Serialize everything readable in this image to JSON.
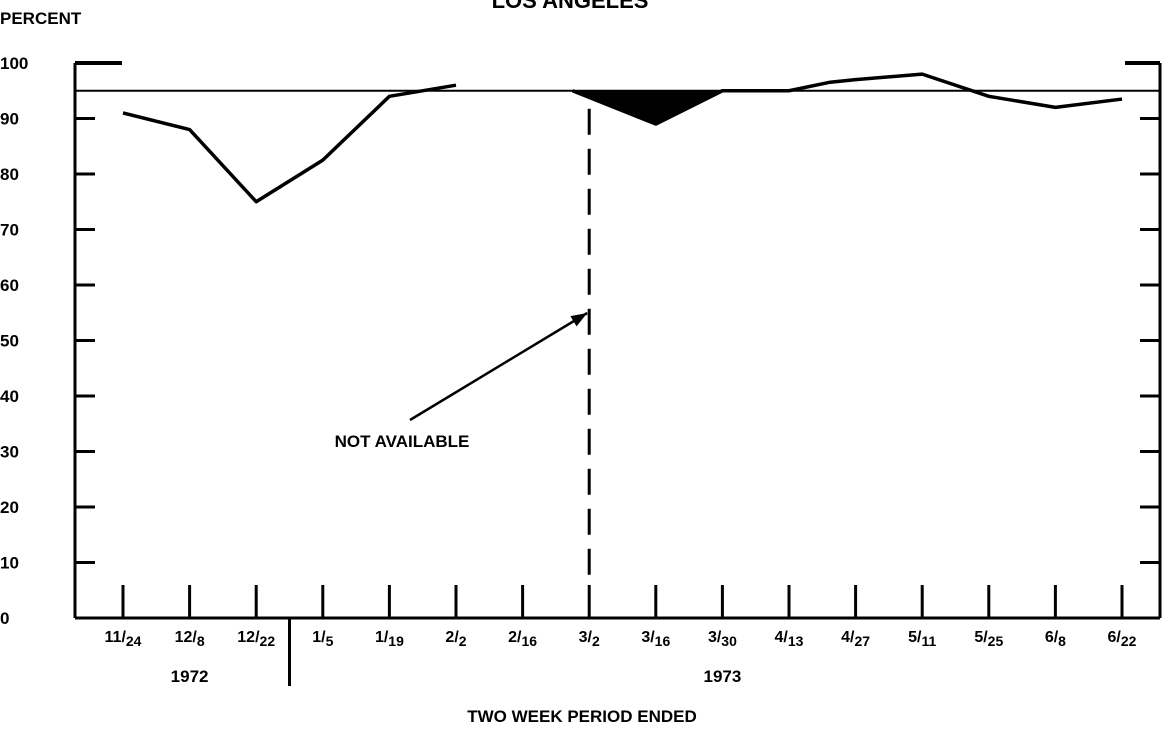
{
  "chart_data": {
    "type": "line",
    "title": "LOS ANGELES",
    "ylabel": "PERCENT",
    "xlabel": "TWO WEEK PERIOD ENDED",
    "ylim": [
      0,
      100
    ],
    "yticks": [
      "0",
      "10",
      "20",
      "30",
      "40",
      "50",
      "60",
      "70",
      "80",
      "90",
      "100"
    ],
    "categories": [
      {
        "label": "11/24",
        "main": "11/",
        "sub": "24"
      },
      {
        "label": "12/8",
        "main": "12/",
        "sub": "8"
      },
      {
        "label": "12/22",
        "main": "12/",
        "sub": "22"
      },
      {
        "label": "1/5",
        "main": "1/",
        "sub": "5"
      },
      {
        "label": "1/19",
        "main": "1/",
        "sub": "19"
      },
      {
        "label": "2/2",
        "main": "2/",
        "sub": "2"
      },
      {
        "label": "2/16",
        "main": "2/",
        "sub": "16"
      },
      {
        "label": "3/2",
        "main": "3/",
        "sub": "2"
      },
      {
        "label": "3/16",
        "main": "3/",
        "sub": "16"
      },
      {
        "label": "3/30",
        "main": "3/",
        "sub": "30"
      },
      {
        "label": "4/13",
        "main": "4/",
        "sub": "13"
      },
      {
        "label": "4/27",
        "main": "4/",
        "sub": "27"
      },
      {
        "label": "5/11",
        "main": "5/",
        "sub": "11"
      },
      {
        "label": "5/25",
        "main": "5/",
        "sub": "25"
      },
      {
        "label": "6/8",
        "main": "6/",
        "sub": "8"
      },
      {
        "label": "6/22",
        "main": "6/",
        "sub": "22"
      }
    ],
    "years": [
      {
        "label": "1972",
        "at": 1
      },
      {
        "label": "1973",
        "at": 9
      }
    ],
    "year_divider_at": 2.5,
    "reference_line": 95,
    "series": [
      {
        "points": [
          {
            "x": 0,
            "y": 91
          },
          {
            "x": 1,
            "y": 88
          },
          {
            "x": 2,
            "y": 75
          },
          {
            "x": 3,
            "y": 82.5
          },
          {
            "x": 4,
            "y": 94
          },
          {
            "x": 5,
            "y": 96
          },
          {
            "x": 6.75,
            "y": 95
          },
          {
            "x": 8,
            "y": 89
          },
          {
            "x": 9,
            "y": 95
          },
          {
            "x": 10,
            "y": 95
          },
          {
            "x": 10.6,
            "y": 96.5
          },
          {
            "x": 11,
            "y": 97
          },
          {
            "x": 12,
            "y": 98
          },
          {
            "x": 13,
            "y": 94
          },
          {
            "x": 14,
            "y": 92
          },
          {
            "x": 15,
            "y": 93.5
          }
        ],
        "gap_after_index": 5,
        "shaded_below_target": [
          6.75,
          9
        ]
      }
    ],
    "annotation": {
      "text": "NOT AVAILABLE",
      "marker_at": 7
    },
    "grid": false,
    "colors": {
      "line": "#000000",
      "shade": "#000000",
      "background": "#ffffff"
    }
  }
}
